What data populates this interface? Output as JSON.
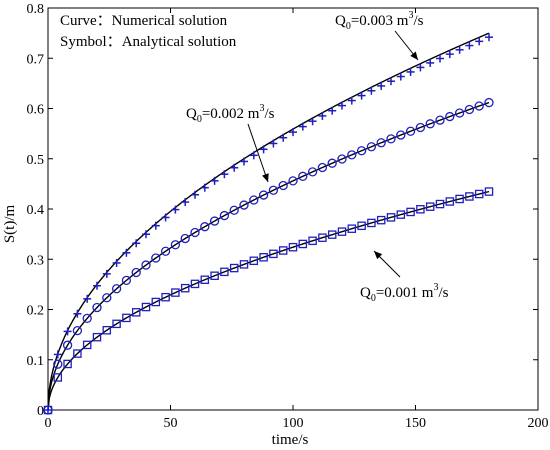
{
  "chart_data": {
    "type": "line",
    "xlabel": "time/s",
    "ylabel": "S(t)/m",
    "xlim": [
      0,
      200
    ],
    "ylim": [
      0,
      0.8
    ],
    "x_ticks": [
      "0",
      "50",
      "100",
      "150",
      "200"
    ],
    "y_ticks": [
      "0",
      "0.1",
      "0.2",
      "0.3",
      "0.4",
      "0.5",
      "0.6",
      "0.7",
      "0.8"
    ],
    "grid": false,
    "legend_position": "top-left",
    "legend": {
      "curve_label": "Curve：",
      "curve_text": "Numerical solution",
      "symbol_label": "Symbol：",
      "symbol_text": "Analytical solution"
    },
    "curve_color": "#000000",
    "marker_color": "#1f1fbf",
    "series": [
      {
        "q_value": "0.003",
        "marker": "plus",
        "annotation": {
          "prefix": "Q",
          "subscript": "0",
          "middle": "=0.003 m",
          "superscript": "3",
          "suffix": "/s"
        },
        "numerical": {
          "coefficient": 0.0559,
          "exponent": 0.5
        },
        "analytical": {
          "coefficient": 0.0553,
          "exponent": 0.5
        }
      },
      {
        "q_value": "0.002",
        "marker": "circle",
        "annotation": {
          "prefix": "Q",
          "subscript": "0",
          "middle": "=0.002 m",
          "superscript": "3",
          "suffix": "/s"
        },
        "numerical": {
          "coefficient": 0.0456,
          "exponent": 0.5
        },
        "analytical": {
          "coefficient": 0.0456,
          "exponent": 0.5
        }
      },
      {
        "q_value": "0.001",
        "marker": "square",
        "annotation": {
          "prefix": "Q",
          "subscript": "0",
          "middle": "=0.001 m",
          "superscript": "3",
          "suffix": "/s"
        },
        "numerical": {
          "coefficient": 0.0324,
          "exponent": 0.5
        },
        "analytical": {
          "coefficient": 0.0324,
          "exponent": 0.5
        }
      }
    ],
    "time_end": 180,
    "marker_spacing": 4
  }
}
